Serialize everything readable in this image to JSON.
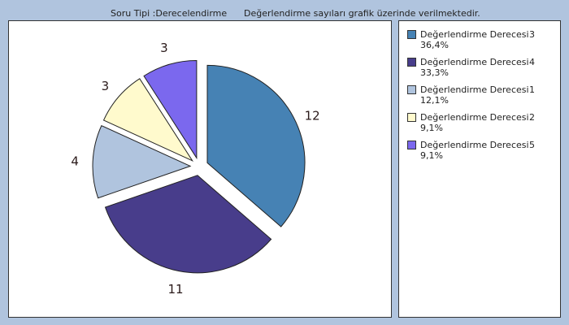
{
  "header": {
    "question_type": "Soru Tipi :Derecelendirme",
    "note": "Değerlendirme sayıları grafik üzerinde verilmektedir."
  },
  "chart_data": {
    "type": "pie",
    "title": "",
    "slices": [
      {
        "label": "Değerlendirme Derecesi",
        "category": "3",
        "value": 12,
        "percent": "36,4%",
        "color": "#4682b4"
      },
      {
        "label": "Değerlendirme Derecesi",
        "category": "4",
        "value": 11,
        "percent": "33,3%",
        "color": "#483d8b"
      },
      {
        "label": "Değerlendirme Derecesi",
        "category": "1",
        "value": 4,
        "percent": "12,1%",
        "color": "#b0c4de"
      },
      {
        "label": "Değerlendirme Derecesi",
        "category": "2",
        "value": 3,
        "percent": "9,1%",
        "color": "#fffacd"
      },
      {
        "label": "Değerlendirme Derecesi",
        "category": "5",
        "value": 3,
        "percent": "9,1%",
        "color": "#7b68ee"
      }
    ],
    "legend_position": "right",
    "exploded": true
  }
}
